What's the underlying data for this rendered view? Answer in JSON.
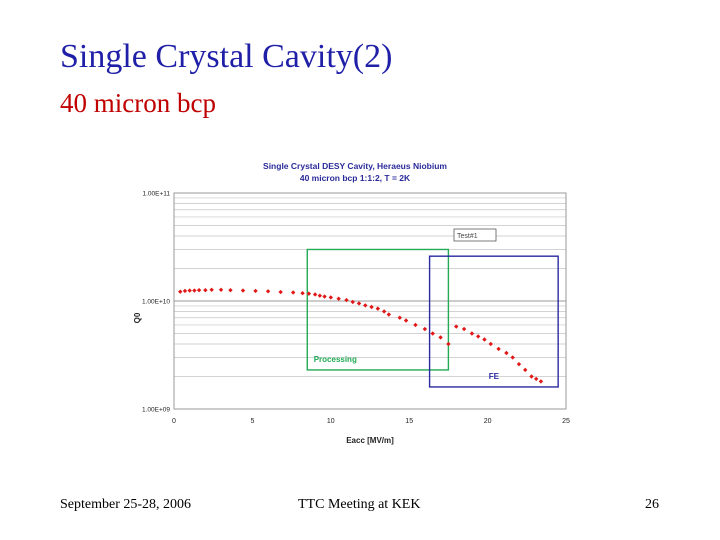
{
  "slide": {
    "title": "Single Crystal Cavity(2)",
    "subtitle": "40 micron bcp",
    "title_color": "#1f1fa8",
    "subtitle_color": "#c00000"
  },
  "footer": {
    "date": "September 25-28, 2006",
    "meeting": "TTC Meeting at KEK",
    "page": "26"
  },
  "chart_data": {
    "type": "scatter",
    "title": "Single Crystal DESY Cavity, Heraeus Niobium",
    "subtitle": "40 micron bcp 1:1:2, T = 2K",
    "xlabel": "Eacc [MV/m]",
    "ylabel": "Q0",
    "xlim": [
      0,
      25
    ],
    "ylim": [
      1000000000.0,
      100000000000.0
    ],
    "yscale": "log",
    "xticks": [
      "0",
      "5",
      "10",
      "15",
      "20",
      "25"
    ],
    "yticks": [
      "1.00E+09",
      "1.00E+10",
      "1.00E+11"
    ],
    "grid": true,
    "legend": [
      "Test#1"
    ],
    "marker_color": "#e01818",
    "series": [
      {
        "name": "Test#1",
        "x": [
          0.4,
          0.7,
          1.0,
          1.3,
          1.6,
          2.0,
          2.4,
          3.0,
          3.6,
          4.4,
          5.2,
          6.0,
          6.8,
          7.6,
          8.2,
          8.6,
          9.0,
          9.3,
          9.6,
          10.0,
          10.5,
          11.0,
          11.4,
          11.8,
          12.2,
          12.6,
          13.0,
          13.4,
          13.7,
          14.4,
          14.8,
          15.4,
          16.0,
          16.5,
          17.0,
          17.5,
          18.0,
          18.5,
          19.0,
          19.4,
          19.8,
          20.2,
          20.7,
          21.2,
          21.6,
          22.0,
          22.4,
          22.8,
          23.1,
          23.4
        ],
        "y": [
          12200000000.0,
          12400000000.0,
          12500000000.0,
          12500000000.0,
          12600000000.0,
          12600000000.0,
          12700000000.0,
          12700000000.0,
          12600000000.0,
          12500000000.0,
          12400000000.0,
          12300000000.0,
          12100000000.0,
          12000000000.0,
          11800000000.0,
          11700000000.0,
          11500000000.0,
          11200000000.0,
          11000000000.0,
          10800000000.0,
          10500000000.0,
          10200000000.0,
          9800000000.0,
          9500000000.0,
          9100000000.0,
          8800000000.0,
          8500000000.0,
          8000000000.0,
          7500000000.0,
          7000000000.0,
          6600000000.0,
          6000000000.0,
          5500000000.0,
          5000000000.0,
          4600000000.0,
          4000000000.0,
          5800000000.0,
          5500000000.0,
          5000000000.0,
          4700000000.0,
          4400000000.0,
          4000000000.0,
          3600000000.0,
          3300000000.0,
          3000000000.0,
          2600000000.0,
          2300000000.0,
          2000000000.0,
          1900000000.0,
          1800000000.0
        ]
      }
    ],
    "regions": [
      {
        "label": "Processing",
        "x": [
          8.5,
          17.5
        ],
        "y": [
          2300000000.0,
          30000000000.0
        ],
        "color": "#22aa55"
      },
      {
        "label": "FE",
        "x": [
          16.3,
          24.5
        ],
        "y": [
          1600000000.0,
          26000000000.0
        ],
        "color": "#2a2aa0"
      }
    ]
  }
}
